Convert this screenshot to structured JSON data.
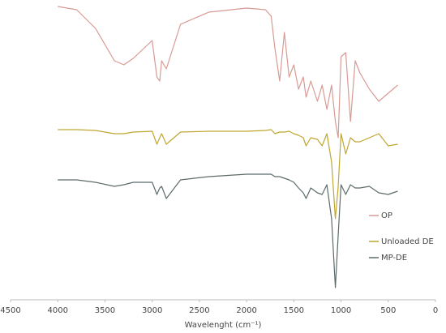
{
  "chart_data": {
    "type": "line",
    "x_label": "Wavelenght (cm⁻¹)",
    "x": [
      4000,
      3800,
      3600,
      3400,
      3300,
      3200,
      3000,
      2950,
      2920,
      2900,
      2850,
      2700,
      2400,
      2000,
      1800,
      1740,
      1700,
      1650,
      1600,
      1550,
      1500,
      1450,
      1400,
      1370,
      1320,
      1250,
      1200,
      1150,
      1100,
      1060,
      1030,
      1000,
      950,
      900,
      850,
      800,
      700,
      600,
      500,
      400
    ],
    "xlim": [
      4500,
      0
    ],
    "xticks": [
      4500,
      4000,
      3500,
      3000,
      2500,
      2000,
      1500,
      1000,
      500,
      0
    ],
    "ylim": [
      0,
      370
    ],
    "series": [
      {
        "name": "OP",
        "color": "#d89a94",
        "values": [
          362,
          358,
          335,
          295,
          290,
          298,
          320,
          275,
          270,
          295,
          285,
          340,
          355,
          360,
          358,
          350,
          310,
          270,
          330,
          275,
          290,
          260,
          275,
          250,
          270,
          245,
          265,
          235,
          265,
          220,
          200,
          300,
          305,
          220,
          295,
          280,
          260,
          245,
          255,
          265
        ]
      },
      {
        "name": "Unloaded DE",
        "color": "#bfa630",
        "values": [
          210,
          210,
          209,
          205,
          205,
          207,
          208,
          192,
          200,
          205,
          192,
          207,
          208,
          208,
          209,
          210,
          205,
          207,
          207,
          208,
          205,
          203,
          200,
          190,
          200,
          198,
          190,
          205,
          170,
          100,
          140,
          205,
          180,
          200,
          195,
          195,
          200,
          205,
          190,
          192
        ]
      },
      {
        "name": "MP-DE",
        "color": "#5c6b6a",
        "values": [
          148,
          148,
          145,
          140,
          142,
          145,
          145,
          130,
          138,
          140,
          125,
          148,
          152,
          155,
          155,
          155,
          152,
          152,
          150,
          148,
          145,
          138,
          132,
          125,
          138,
          132,
          130,
          142,
          100,
          15,
          80,
          142,
          130,
          142,
          138,
          138,
          140,
          132,
          130,
          134
        ]
      }
    ]
  }
}
